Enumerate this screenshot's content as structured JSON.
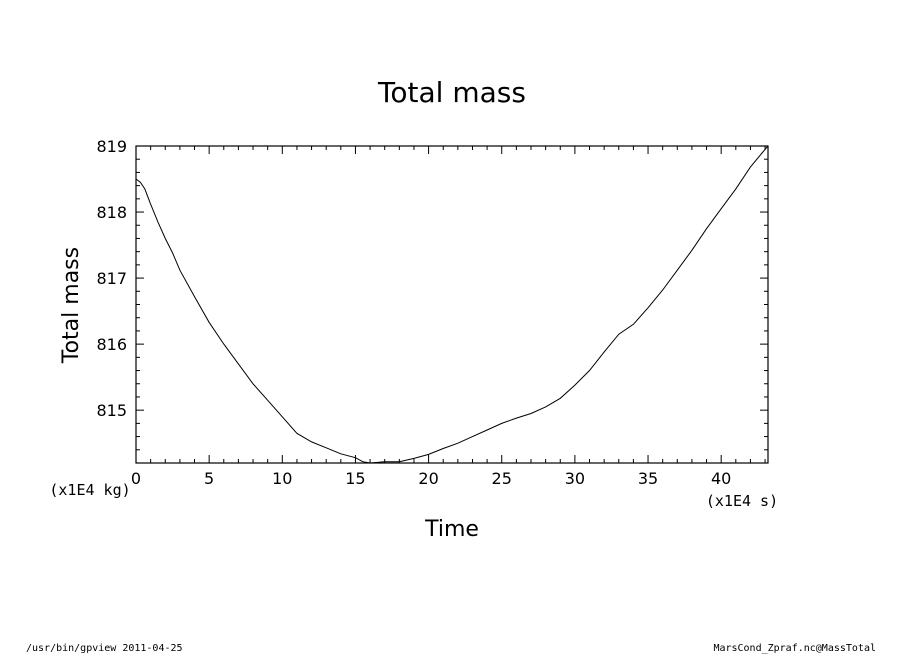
{
  "chart_data": {
    "type": "line",
    "title": "Total mass",
    "xlabel": "Time",
    "ylabel": "Total mass",
    "x_unit": "(x1E4 s)",
    "y_unit": "(x1E4 kg)",
    "xlim": [
      0,
      43.2
    ],
    "ylim": [
      814.2,
      819.0
    ],
    "xticks": [
      0,
      5,
      10,
      15,
      20,
      25,
      30,
      35,
      40
    ],
    "yticks": [
      815,
      816,
      817,
      818,
      819
    ],
    "xtick_labels": [
      "0",
      "5",
      "10",
      "15",
      "20",
      "25",
      "30",
      "35",
      "40"
    ],
    "ytick_labels": [
      "815",
      "816",
      "817",
      "818",
      "819"
    ],
    "grid": false,
    "series": [
      {
        "x": [
          0,
          0.3,
          0.6,
          1,
          1.5,
          2,
          2.5,
          3,
          4,
          5,
          6,
          7,
          8,
          9,
          10,
          11,
          12,
          13,
          14,
          15,
          15.5,
          16,
          17,
          18,
          19,
          20,
          21,
          22,
          23,
          24,
          25,
          26,
          27,
          28,
          29,
          30,
          31,
          32,
          33,
          34,
          35,
          36,
          37,
          38,
          39,
          40,
          41,
          42,
          43,
          43.2
        ],
        "y": [
          818.5,
          818.45,
          818.35,
          818.12,
          817.85,
          817.6,
          817.38,
          817.12,
          816.72,
          816.33,
          816.0,
          815.7,
          815.4,
          815.15,
          814.9,
          814.65,
          814.52,
          814.43,
          814.34,
          814.28,
          814.22,
          814.2,
          814.22,
          814.22,
          814.27,
          814.33,
          814.42,
          814.5,
          814.6,
          814.7,
          814.8,
          814.88,
          814.95,
          815.05,
          815.18,
          815.38,
          815.6,
          815.88,
          816.15,
          816.3,
          816.55,
          816.82,
          817.12,
          817.42,
          817.75,
          818.05,
          818.35,
          818.68,
          818.95,
          819.0
        ]
      }
    ]
  },
  "footer": {
    "left": "/usr/bin/gpview   2011-04-25",
    "right": "MarsCond_Zpraf.nc@MassTotal"
  }
}
